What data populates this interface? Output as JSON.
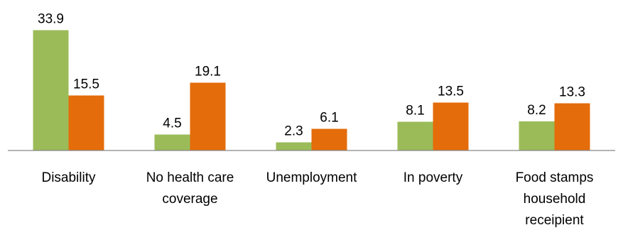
{
  "chart_data": {
    "type": "bar",
    "categories": [
      [
        "Disability"
      ],
      [
        "No health care",
        "coverage"
      ],
      [
        "Unemployment"
      ],
      [
        "In poverty"
      ],
      [
        "Food stamps",
        "household",
        "receipient"
      ]
    ],
    "series": [
      {
        "color": "#9bbb59",
        "values": [
          33.9,
          4.5,
          2.3,
          8.1,
          8.2
        ]
      },
      {
        "color": "#e46c0a",
        "values": [
          15.5,
          19.1,
          6.1,
          13.5,
          13.3
        ]
      }
    ],
    "value_labels": [
      [
        "33.9",
        "4.5",
        "2.3",
        "8.1",
        "8.2"
      ],
      [
        "15.5",
        "19.1",
        "6.1",
        "13.5",
        "13.3"
      ]
    ],
    "ylim": [
      0,
      34
    ],
    "grid": false,
    "legend": "none",
    "axis_color": "#868686"
  }
}
